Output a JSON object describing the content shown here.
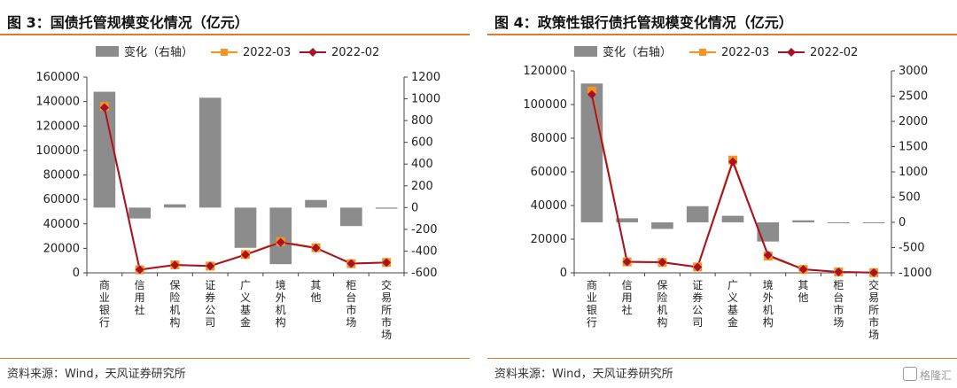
{
  "legend": {
    "bar": "变化（右轴）",
    "line_a": "2022-03",
    "line_b": "2022-02"
  },
  "colors": {
    "bar": "#8c8c8c",
    "line_a": "#f7941d",
    "line_b": "#a5122a",
    "rule": "#e07a2a",
    "axis": "#444444"
  },
  "watermark": "格隆汇",
  "chart_data": [
    {
      "type": "bar+line",
      "title": "图 3：国债托管规模变化情况（亿元）",
      "source": "资料来源：Wind，天风证券研究所",
      "categories": [
        "商业银行",
        "信用社",
        "保险机构",
        "证券公司",
        "广义基金",
        "境外机构",
        "其他",
        "柜台市场",
        "交易所市场"
      ],
      "left_axis": {
        "min": 0,
        "max": 160000,
        "step": 20000,
        "ticks": [
          "0",
          "20000",
          "40000",
          "60000",
          "80000",
          "100000",
          "120000",
          "140000",
          "160000"
        ]
      },
      "right_axis": {
        "min": -600,
        "max": 1200,
        "step": 200,
        "ticks": [
          "-600",
          "-400",
          "-200",
          "0",
          "200",
          "400",
          "600",
          "800",
          "1000",
          "1200"
        ]
      },
      "series": [
        {
          "name": "变化（右轴）",
          "type": "bar",
          "axis": "right",
          "values": [
            1065,
            -100,
            30,
            1010,
            -370,
            -520,
            70,
            -170,
            -10
          ]
        },
        {
          "name": "2022-03",
          "type": "line",
          "axis": "left",
          "values": [
            136000,
            2500,
            6500,
            5500,
            15000,
            25500,
            20500,
            7500,
            8500
          ]
        },
        {
          "name": "2022-02",
          "type": "line",
          "axis": "left",
          "values": [
            135000,
            2600,
            6400,
            5600,
            14800,
            25000,
            20300,
            7600,
            8400
          ]
        }
      ]
    },
    {
      "type": "bar+line",
      "title": "图 4：政策性银行债托管规模变化情况（亿元）",
      "source": "资料来源：Wind，天风证券研究所",
      "categories": [
        "商业银行",
        "信用社",
        "保险机构",
        "证券公司",
        "广义基金",
        "境外机构",
        "其他",
        "柜台市场",
        "交易所市场"
      ],
      "left_axis": {
        "min": 0,
        "max": 120000,
        "step": 20000,
        "ticks": [
          "0",
          "20000",
          "40000",
          "60000",
          "80000",
          "100000",
          "120000"
        ]
      },
      "right_axis": {
        "min": -1000,
        "max": 3000,
        "step": 500,
        "ticks": [
          "-1000",
          "-500",
          "0",
          "500",
          "1000",
          "1500",
          "2000",
          "2500",
          "3000"
        ]
      },
      "series": [
        {
          "name": "变化（右轴）",
          "type": "bar",
          "axis": "right",
          "values": [
            2750,
            80,
            -130,
            320,
            130,
            -380,
            40,
            -10,
            0
          ]
        },
        {
          "name": "2022-03",
          "type": "line",
          "axis": "left",
          "values": [
            108000,
            6500,
            6200,
            3500,
            67000,
            10000,
            2000,
            500,
            100
          ]
        },
        {
          "name": "2022-02",
          "type": "line",
          "axis": "left",
          "values": [
            106000,
            6600,
            6300,
            3400,
            66000,
            10500,
            2100,
            550,
            150
          ]
        }
      ]
    }
  ]
}
